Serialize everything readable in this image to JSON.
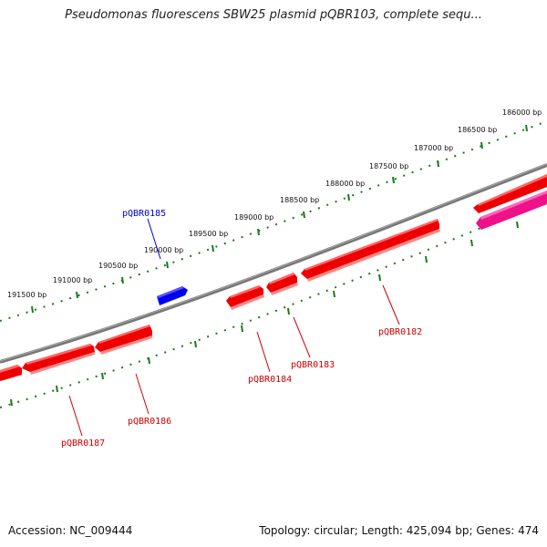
{
  "title": "Pseudomonas fluorescens SBW25 plasmid pQBR103, complete sequ...",
  "accession": "Accession: NC_009444",
  "summary": "Topology: circular; Length: 425,094 bp; Genes: 474",
  "colors": {
    "backbone": "#777777",
    "ticks": "#1a7a1a",
    "forward_gene": "#0000ee",
    "reverse_gene": "#ee0000",
    "highlight_gene": "#ee1188"
  },
  "ruler": {
    "labels": [
      "191500 bp",
      "191000 bp",
      "190500 bp",
      "190000 bp",
      "189500 bp",
      "189000 bp",
      "188500 bp",
      "188000 bp",
      "187500 bp",
      "187000 bp",
      "186500 bp",
      "186000 bp"
    ]
  },
  "genes": [
    {
      "name": "pQBR0185",
      "strand": "forward"
    },
    {
      "name": "pQBR0187",
      "strand": "reverse"
    },
    {
      "name": "pQBR0186",
      "strand": "reverse"
    },
    {
      "name": "pQBR0184",
      "strand": "reverse"
    },
    {
      "name": "pQBR0183",
      "strand": "reverse"
    },
    {
      "name": "pQBR0182",
      "strand": "reverse"
    }
  ]
}
